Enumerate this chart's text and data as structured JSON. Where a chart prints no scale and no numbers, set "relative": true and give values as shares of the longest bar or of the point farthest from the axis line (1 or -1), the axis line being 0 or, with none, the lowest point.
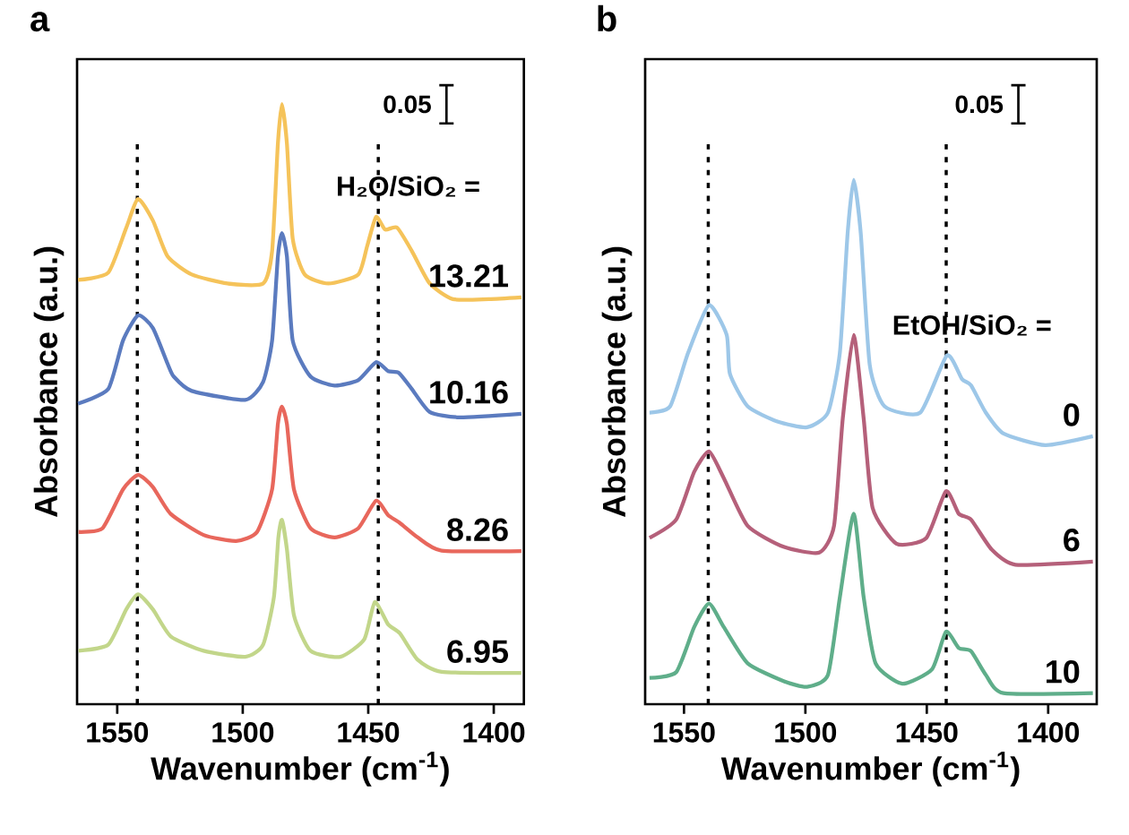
{
  "chart_data": [
    {
      "type": "line",
      "title": "a",
      "xlabel": "Wavenumber (cm$^{-1}$)",
      "ylabel": "Absorbance (a.u.)",
      "relative": true,
      "tick_labels": "x",
      "legend_title": "H₂O/SiO₂ =",
      "xlim": [
        1566,
        1388
      ],
      "xticks": [
        1550,
        1500,
        1450,
        1400
      ],
      "annotations": [
        "0.05"
      ],
      "ref_lines": [
        {
          "axis": "x",
          "value": 1542,
          "line_style": "dotted",
          "color": "#000000"
        },
        {
          "axis": "x",
          "value": 1446,
          "line_style": "dotted",
          "color": "#000000"
        }
      ],
      "series": [
        {
          "name": "13.21",
          "color": "#f5c35a",
          "x": [
            1565.6,
            1553.6,
            1546.4,
            1541.7,
            1535.8,
            1529.9,
            1520.3,
            1506.1,
            1491.9,
            1488.3,
            1486,
            1484.4,
            1482.4,
            1480.1,
            1475.3,
            1465.9,
            1454,
            1450.4,
            1446.9,
            1443.3,
            1438.5,
            1432.6,
            1425.5,
            1416.3,
            1402,
            1389
          ],
          "values": [
            0.707,
            0.719,
            0.794,
            0.842,
            0.806,
            0.746,
            0.716,
            0.701,
            0.701,
            0.755,
            0.934,
            1.0,
            0.934,
            0.776,
            0.716,
            0.701,
            0.716,
            0.764,
            0.812,
            0.791,
            0.794,
            0.755,
            0.701,
            0.675,
            0.675,
            0.678
          ]
        },
        {
          "name": "10.16",
          "color": "#5b7bbf",
          "x": [
            1565.6,
            1553.6,
            1547.7,
            1541.7,
            1535.8,
            1529.9,
            1527.5,
            1520.3,
            1499,
            1491.9,
            1488.3,
            1486,
            1484.4,
            1482.4,
            1480.1,
            1473,
            1463.4,
            1454,
            1446.9,
            1442.1,
            1437.8,
            1432.6,
            1425.5,
            1413.7,
            1389
          ],
          "values": [
            0.501,
            0.525,
            0.606,
            0.648,
            0.627,
            0.567,
            0.546,
            0.522,
            0.507,
            0.537,
            0.606,
            0.746,
            0.785,
            0.746,
            0.606,
            0.546,
            0.531,
            0.54,
            0.57,
            0.555,
            0.552,
            0.525,
            0.487,
            0.478,
            0.484
          ]
        },
        {
          "name": "8.26",
          "color": "#e8675c",
          "x": [
            1565.4,
            1555.9,
            1547.7,
            1541.7,
            1535.8,
            1528.7,
            1515.6,
            1502.6,
            1494.3,
            1488.3,
            1486,
            1484.4,
            1482.4,
            1479.6,
            1473,
            1463.4,
            1454,
            1446.9,
            1442.1,
            1437.4,
            1430.3,
            1420.8,
            1389
          ],
          "values": [
            0.287,
            0.293,
            0.358,
            0.382,
            0.362,
            0.317,
            0.282,
            0.272,
            0.287,
            0.358,
            0.467,
            0.496,
            0.467,
            0.358,
            0.293,
            0.278,
            0.293,
            0.339,
            0.315,
            0.302,
            0.278,
            0.256,
            0.255
          ]
        },
        {
          "name": "6.95",
          "color": "#c2d68a",
          "x": [
            1565.4,
            1553.6,
            1546.4,
            1541.7,
            1535.8,
            1528.7,
            1515.6,
            1499,
            1491.9,
            1487.6,
            1485.8,
            1484.4,
            1482.4,
            1479.6,
            1473,
            1461.1,
            1451.6,
            1447.4,
            1442.1,
            1437.4,
            1430.3,
            1420.8,
            1389
          ],
          "values": [
            0.089,
            0.099,
            0.158,
            0.183,
            0.158,
            0.113,
            0.089,
            0.079,
            0.099,
            0.178,
            0.278,
            0.307,
            0.258,
            0.148,
            0.089,
            0.079,
            0.108,
            0.17,
            0.133,
            0.118,
            0.074,
            0.054,
            0.052
          ]
        }
      ]
    },
    {
      "type": "line",
      "title": "b",
      "xlabel": "Wavenumber (cm$^{-1}$)",
      "ylabel": "Absorbance (a.u.)",
      "relative": true,
      "tick_labels": "x",
      "legend_title": "EtOH/SiO₂ =",
      "xlim": [
        1566,
        1380
      ],
      "xticks": [
        1550,
        1500,
        1450,
        1400
      ],
      "annotations": [
        "0.05"
      ],
      "ref_lines": [
        {
          "axis": "x",
          "value": 1540,
          "line_style": "dotted",
          "color": "#000000"
        },
        {
          "axis": "x",
          "value": 1442,
          "line_style": "dotted",
          "color": "#000000"
        }
      ],
      "series": [
        {
          "name": "0",
          "color": "#9dc7e8",
          "x": [
            1564.2,
            1555.7,
            1548.3,
            1539.7,
            1532.4,
            1531.1,
            1523.8,
            1511.5,
            1499.3,
            1490.7,
            1485.8,
            1482.6,
            1480.1,
            1477.2,
            1473.5,
            1467.4,
            1452.7,
            1441.7,
            1435.5,
            1431.8,
            1425.7,
            1418.4,
            1401.2,
            1381.6
          ],
          "values": [
            0.556,
            0.568,
            0.67,
            0.761,
            0.704,
            0.63,
            0.568,
            0.539,
            0.528,
            0.556,
            0.67,
            0.898,
            1.0,
            0.898,
            0.647,
            0.568,
            0.556,
            0.665,
            0.62,
            0.608,
            0.556,
            0.516,
            0.494,
            0.511
          ]
        },
        {
          "name": "6",
          "color": "#b5607a",
          "x": [
            1564.2,
            1553.2,
            1545.8,
            1539.7,
            1533.6,
            1523.8,
            1509,
            1494.3,
            1488.2,
            1484.6,
            1480.1,
            1476,
            1472.3,
            1462.5,
            1450.2,
            1442.1,
            1436.8,
            1431.8,
            1423.3,
            1413.5,
            1381.6
          ],
          "values": [
            0.317,
            0.352,
            0.443,
            0.482,
            0.431,
            0.34,
            0.3,
            0.289,
            0.34,
            0.545,
            0.704,
            0.545,
            0.374,
            0.306,
            0.317,
            0.406,
            0.363,
            0.352,
            0.295,
            0.266,
            0.272
          ]
        },
        {
          "name": "10",
          "color": "#5fae8a",
          "x": [
            1564.2,
            1553.2,
            1545.8,
            1539.7,
            1533.6,
            1523.8,
            1509,
            1499.3,
            1490.7,
            1485.8,
            1480.1,
            1476,
            1471.1,
            1460.1,
            1447.8,
            1442.1,
            1436.8,
            1431.8,
            1425.7,
            1418.4,
            1381.6
          ],
          "values": [
            0.05,
            0.061,
            0.147,
            0.192,
            0.147,
            0.078,
            0.044,
            0.033,
            0.056,
            0.204,
            0.363,
            0.204,
            0.078,
            0.039,
            0.067,
            0.138,
            0.107,
            0.101,
            0.056,
            0.021,
            0.021
          ]
        }
      ]
    }
  ]
}
